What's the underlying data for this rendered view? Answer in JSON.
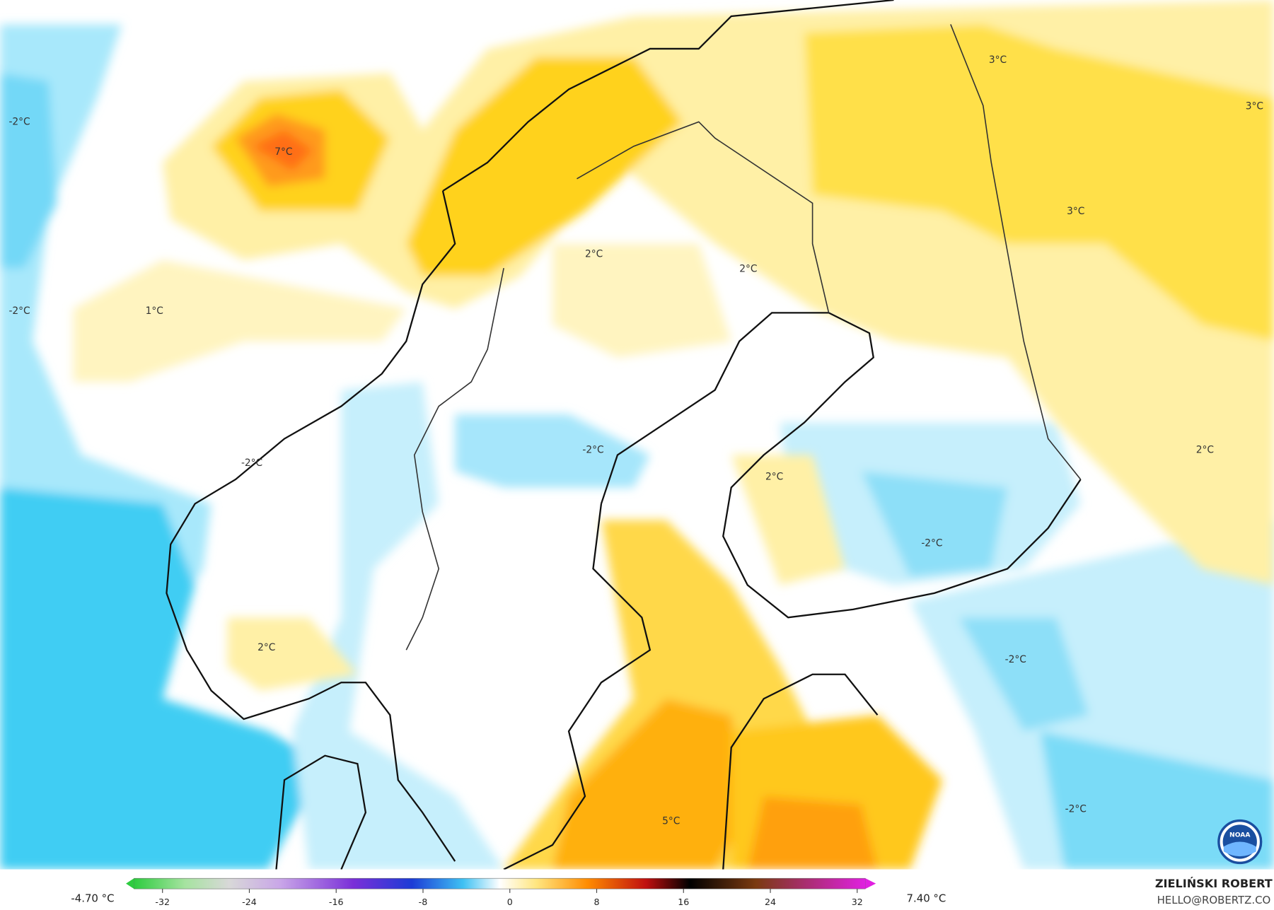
{
  "map": {
    "labels": [
      {
        "text": "-2°C"
      },
      {
        "text": "7°C"
      },
      {
        "text": "-2°C"
      },
      {
        "text": "1°C"
      },
      {
        "text": "2°C"
      },
      {
        "text": "2°C"
      },
      {
        "text": "3°C"
      },
      {
        "text": "3°C"
      },
      {
        "text": "3°C"
      },
      {
        "text": "-2°C"
      },
      {
        "text": "-2°C"
      },
      {
        "text": "2°C"
      },
      {
        "text": "2°C"
      },
      {
        "text": "-2°C"
      },
      {
        "text": "2°C"
      },
      {
        "text": "-2°C"
      },
      {
        "text": "-2°C"
      },
      {
        "text": "5°C"
      }
    ]
  },
  "colorbar": {
    "min_label": "-4.70 °C",
    "max_label": "7.40 °C",
    "ticks": [
      -32,
      -24,
      -16,
      -8,
      0,
      8,
      16,
      24,
      32
    ]
  },
  "credit": {
    "author": "ZIELIŃSKI ROBERT",
    "contact": "HELLO@ROBERTZ.CO"
  }
}
